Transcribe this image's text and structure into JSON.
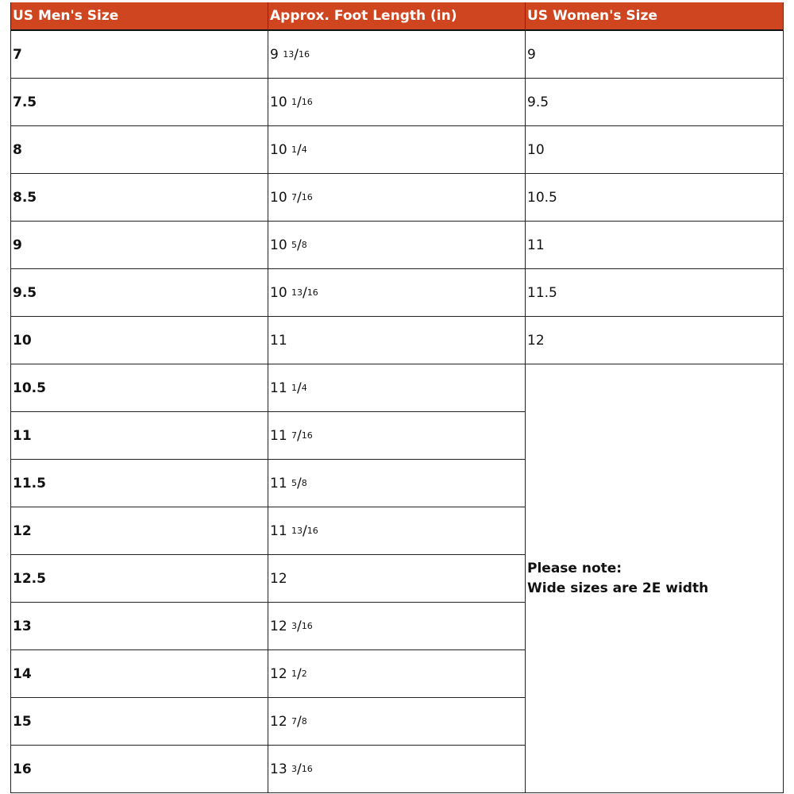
{
  "header": {
    "columns": [
      "US Men's Size",
      "Approx. Foot Length (in)",
      "US Women's Size"
    ],
    "color": "#cf4520"
  },
  "rows": [
    {
      "men": "7",
      "whole": "9",
      "num": "13",
      "den": "16",
      "women": "9"
    },
    {
      "men": "7.5",
      "whole": "10",
      "num": "1",
      "den": "16",
      "women": "9.5"
    },
    {
      "men": "8",
      "whole": "10",
      "num": "1",
      "den": "4",
      "women": "10"
    },
    {
      "men": "8.5",
      "whole": "10",
      "num": "7",
      "den": "16",
      "women": "10.5"
    },
    {
      "men": "9",
      "whole": "10",
      "num": "5",
      "den": "8",
      "women": "11"
    },
    {
      "men": "9.5",
      "whole": "10",
      "num": "13",
      "den": "16",
      "women": "11.5"
    },
    {
      "men": "10",
      "whole": "11",
      "num": "",
      "den": "",
      "women": "12"
    },
    {
      "men": "10.5",
      "whole": "11",
      "num": "1",
      "den": "4"
    },
    {
      "men": "11",
      "whole": "11",
      "num": "7",
      "den": "16"
    },
    {
      "men": "11.5",
      "whole": "11",
      "num": "5",
      "den": "8"
    },
    {
      "men": "12",
      "whole": "11",
      "num": "13",
      "den": "16"
    },
    {
      "men": "12.5",
      "whole": "12",
      "num": "",
      "den": ""
    },
    {
      "men": "13",
      "whole": "12",
      "num": "3",
      "den": "16"
    },
    {
      "men": "14",
      "whole": "12",
      "num": "1",
      "den": "2"
    },
    {
      "men": "15",
      "whole": "12",
      "num": "7",
      "den": "8"
    },
    {
      "men": "16",
      "whole": "13",
      "num": "3",
      "den": "16"
    }
  ],
  "note": {
    "line1": "Please note:",
    "line2": "Wide sizes are 2E width"
  }
}
